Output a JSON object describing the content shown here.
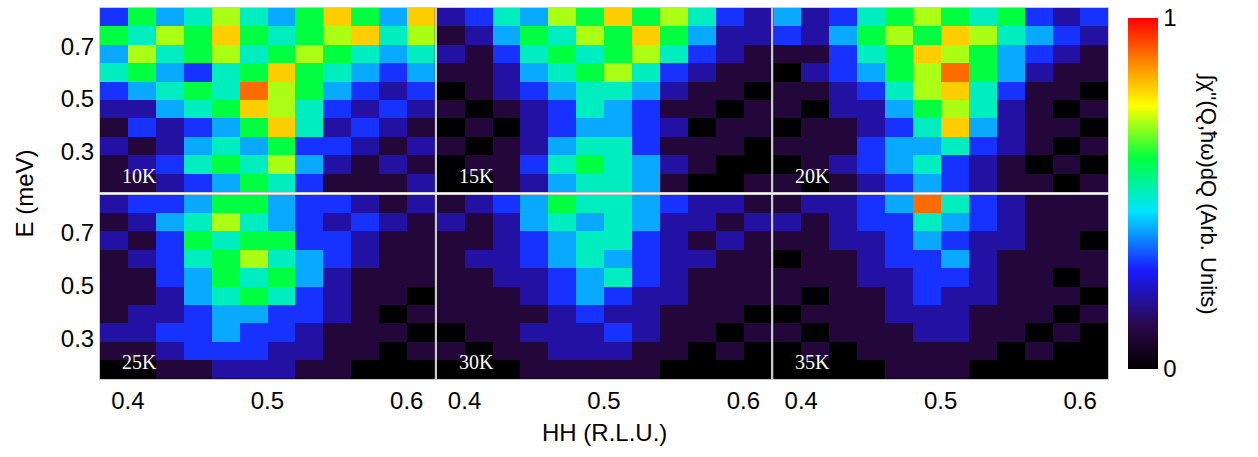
{
  "chart_data": {
    "type": "heatmap",
    "x_label": "HH (R.L.U.)",
    "y_label": "E (meV)",
    "colorbar_title": "∫χ''(Q,ħω)dQ (Arb. Units)",
    "colorbar_range": [
      0,
      1
    ],
    "colorbar_ticks": [
      0,
      1
    ],
    "xlim": [
      0.38,
      0.62
    ],
    "ylim": [
      0.145,
      0.845
    ],
    "xticks": [
      0.4,
      0.5,
      0.6
    ],
    "yticks": [
      0.3,
      0.5,
      0.7
    ],
    "x": [
      0.39,
      0.41,
      0.43,
      0.45,
      0.47,
      0.49,
      0.51,
      0.53,
      0.55,
      0.57,
      0.59,
      0.61
    ],
    "y": [
      0.18,
      0.25,
      0.32,
      0.39,
      0.46,
      0.53,
      0.6,
      0.67,
      0.74,
      0.81
    ],
    "panels": [
      {
        "title": "10K",
        "z": [
          [
            0.1,
            0.1,
            0.2,
            0.3,
            0.4,
            0.6,
            0.5,
            0.3,
            0.1,
            0.1,
            0.1,
            0.2
          ],
          [
            0.1,
            0.2,
            0.3,
            0.5,
            0.6,
            0.5,
            0.7,
            0.4,
            0.2,
            0.1,
            0.2,
            0.1
          ],
          [
            0.2,
            0.1,
            0.2,
            0.4,
            0.5,
            0.4,
            0.6,
            0.3,
            0.3,
            0.2,
            0.1,
            0.2
          ],
          [
            0.1,
            0.3,
            0.2,
            0.3,
            0.4,
            0.6,
            0.8,
            0.5,
            0.2,
            0.3,
            0.2,
            0.1
          ],
          [
            0.2,
            0.2,
            0.4,
            0.5,
            0.6,
            0.8,
            0.7,
            0.5,
            0.3,
            0.2,
            0.3,
            0.2
          ],
          [
            0.3,
            0.4,
            0.5,
            0.6,
            0.5,
            0.9,
            0.7,
            0.6,
            0.4,
            0.3,
            0.2,
            0.3
          ],
          [
            0.5,
            0.6,
            0.4,
            0.3,
            0.5,
            0.6,
            0.8,
            0.6,
            0.5,
            0.4,
            0.3,
            0.4
          ],
          [
            0.4,
            0.7,
            0.5,
            0.6,
            0.7,
            0.5,
            0.6,
            0.7,
            0.6,
            0.5,
            0.4,
            0.5
          ],
          [
            0.6,
            0.5,
            0.7,
            0.6,
            0.8,
            0.6,
            0.5,
            0.6,
            0.7,
            0.8,
            0.5,
            0.7
          ],
          [
            0.3,
            0.6,
            0.4,
            0.5,
            0.7,
            0.5,
            0.4,
            0.6,
            0.8,
            0.6,
            0.4,
            0.8
          ]
        ]
      },
      {
        "title": "15K",
        "z": [
          [
            0.0,
            0.0,
            0.1,
            0.2,
            0.4,
            0.5,
            0.5,
            0.4,
            0.1,
            0.0,
            0.0,
            0.1
          ],
          [
            0.0,
            0.1,
            0.1,
            0.3,
            0.5,
            0.6,
            0.5,
            0.4,
            0.2,
            0.1,
            0.0,
            0.0
          ],
          [
            0.1,
            0.0,
            0.1,
            0.2,
            0.4,
            0.5,
            0.5,
            0.3,
            0.1,
            0.1,
            0.1,
            0.0
          ],
          [
            0.0,
            0.1,
            0.0,
            0.2,
            0.3,
            0.4,
            0.4,
            0.3,
            0.2,
            0.0,
            0.1,
            0.1
          ],
          [
            0.1,
            0.0,
            0.1,
            0.2,
            0.3,
            0.5,
            0.4,
            0.3,
            0.1,
            0.1,
            0.0,
            0.1
          ],
          [
            0.0,
            0.1,
            0.2,
            0.3,
            0.4,
            0.5,
            0.5,
            0.4,
            0.2,
            0.1,
            0.1,
            0.0
          ],
          [
            0.1,
            0.1,
            0.2,
            0.4,
            0.5,
            0.6,
            0.7,
            0.5,
            0.3,
            0.2,
            0.1,
            0.1
          ],
          [
            0.2,
            0.1,
            0.3,
            0.5,
            0.6,
            0.5,
            0.6,
            0.7,
            0.5,
            0.3,
            0.2,
            0.1
          ],
          [
            0.1,
            0.2,
            0.4,
            0.6,
            0.5,
            0.7,
            0.6,
            0.8,
            0.6,
            0.4,
            0.2,
            0.2
          ],
          [
            0.2,
            0.3,
            0.5,
            0.4,
            0.7,
            0.6,
            0.8,
            0.6,
            0.7,
            0.5,
            0.3,
            0.2
          ]
        ]
      },
      {
        "title": "20K",
        "z": [
          [
            0.1,
            0.0,
            0.1,
            0.2,
            0.3,
            0.4,
            0.3,
            0.2,
            0.1,
            0.1,
            0.0,
            0.1
          ],
          [
            0.0,
            0.1,
            0.2,
            0.3,
            0.4,
            0.5,
            0.3,
            0.2,
            0.1,
            0.0,
            0.1,
            0.0
          ],
          [
            0.1,
            0.1,
            0.1,
            0.3,
            0.4,
            0.4,
            0.5,
            0.3,
            0.2,
            0.1,
            0.0,
            0.1
          ],
          [
            0.0,
            0.1,
            0.1,
            0.2,
            0.3,
            0.5,
            0.8,
            0.4,
            0.2,
            0.1,
            0.1,
            0.0
          ],
          [
            0.1,
            0.0,
            0.2,
            0.2,
            0.4,
            0.6,
            0.7,
            0.5,
            0.2,
            0.1,
            0.0,
            0.1
          ],
          [
            0.1,
            0.1,
            0.2,
            0.3,
            0.5,
            0.7,
            0.8,
            0.5,
            0.3,
            0.1,
            0.1,
            0.0
          ],
          [
            0.0,
            0.2,
            0.3,
            0.4,
            0.6,
            0.7,
            0.9,
            0.6,
            0.4,
            0.2,
            0.1,
            0.1
          ],
          [
            0.1,
            0.1,
            0.3,
            0.5,
            0.6,
            0.8,
            0.7,
            0.6,
            0.4,
            0.3,
            0.2,
            0.1
          ],
          [
            0.3,
            0.2,
            0.4,
            0.6,
            0.7,
            0.6,
            0.8,
            0.7,
            0.5,
            0.4,
            0.3,
            0.2
          ],
          [
            0.4,
            0.2,
            0.3,
            0.5,
            0.6,
            0.7,
            0.6,
            0.5,
            0.6,
            0.3,
            0.2,
            0.3
          ]
        ]
      },
      {
        "title": "25K",
        "z": [
          [
            0.0,
            0.0,
            0.1,
            0.1,
            0.2,
            0.2,
            0.2,
            0.1,
            0.1,
            0.0,
            0.0,
            0.0
          ],
          [
            0.1,
            0.1,
            0.2,
            0.3,
            0.3,
            0.3,
            0.2,
            0.2,
            0.1,
            0.1,
            0.0,
            0.1
          ],
          [
            0.2,
            0.2,
            0.3,
            0.3,
            0.4,
            0.3,
            0.3,
            0.2,
            0.1,
            0.1,
            0.1,
            0.0
          ],
          [
            0.1,
            0.2,
            0.2,
            0.3,
            0.4,
            0.4,
            0.3,
            0.3,
            0.2,
            0.1,
            0.0,
            0.1
          ],
          [
            0.1,
            0.1,
            0.2,
            0.4,
            0.5,
            0.6,
            0.5,
            0.3,
            0.2,
            0.1,
            0.1,
            0.0
          ],
          [
            0.1,
            0.1,
            0.3,
            0.4,
            0.6,
            0.5,
            0.6,
            0.4,
            0.2,
            0.1,
            0.1,
            0.1
          ],
          [
            0.1,
            0.2,
            0.3,
            0.5,
            0.6,
            0.7,
            0.5,
            0.4,
            0.3,
            0.2,
            0.1,
            0.1
          ],
          [
            0.2,
            0.1,
            0.3,
            0.6,
            0.5,
            0.6,
            0.6,
            0.3,
            0.3,
            0.2,
            0.1,
            0.1
          ],
          [
            0.1,
            0.2,
            0.4,
            0.5,
            0.7,
            0.5,
            0.4,
            0.3,
            0.2,
            0.3,
            0.2,
            0.1
          ],
          [
            0.2,
            0.3,
            0.3,
            0.4,
            0.6,
            0.6,
            0.4,
            0.3,
            0.3,
            0.2,
            0.1,
            0.2
          ]
        ]
      },
      {
        "title": "30K",
        "z": [
          [
            0.0,
            0.0,
            0.0,
            0.1,
            0.1,
            0.1,
            0.1,
            0.1,
            0.0,
            0.0,
            0.0,
            0.0
          ],
          [
            0.1,
            0.0,
            0.1,
            0.1,
            0.2,
            0.2,
            0.2,
            0.1,
            0.1,
            0.0,
            0.1,
            0.0
          ],
          [
            0.0,
            0.1,
            0.1,
            0.2,
            0.2,
            0.2,
            0.3,
            0.2,
            0.1,
            0.1,
            0.0,
            0.1
          ],
          [
            0.1,
            0.1,
            0.1,
            0.1,
            0.2,
            0.3,
            0.2,
            0.2,
            0.1,
            0.1,
            0.1,
            0.0
          ],
          [
            0.1,
            0.1,
            0.1,
            0.2,
            0.3,
            0.4,
            0.3,
            0.2,
            0.2,
            0.1,
            0.1,
            0.1
          ],
          [
            0.1,
            0.1,
            0.2,
            0.2,
            0.3,
            0.4,
            0.5,
            0.3,
            0.2,
            0.1,
            0.1,
            0.1
          ],
          [
            0.1,
            0.2,
            0.2,
            0.3,
            0.4,
            0.5,
            0.4,
            0.3,
            0.2,
            0.2,
            0.1,
            0.1
          ],
          [
            0.1,
            0.1,
            0.2,
            0.3,
            0.4,
            0.5,
            0.5,
            0.3,
            0.2,
            0.1,
            0.2,
            0.1
          ],
          [
            0.2,
            0.1,
            0.2,
            0.4,
            0.5,
            0.4,
            0.5,
            0.4,
            0.2,
            0.2,
            0.1,
            0.2
          ],
          [
            0.1,
            0.2,
            0.3,
            0.4,
            0.6,
            0.5,
            0.5,
            0.4,
            0.3,
            0.2,
            0.2,
            0.1
          ]
        ]
      },
      {
        "title": "35K",
        "z": [
          [
            0.0,
            0.0,
            0.0,
            0.0,
            0.1,
            0.1,
            0.1,
            0.0,
            0.0,
            0.0,
            0.0,
            0.0
          ],
          [
            0.0,
            0.1,
            0.0,
            0.1,
            0.1,
            0.1,
            0.1,
            0.1,
            0.0,
            0.1,
            0.0,
            0.0
          ],
          [
            0.1,
            0.0,
            0.1,
            0.1,
            0.1,
            0.2,
            0.2,
            0.1,
            0.1,
            0.0,
            0.1,
            0.0
          ],
          [
            0.0,
            0.1,
            0.1,
            0.1,
            0.2,
            0.2,
            0.2,
            0.1,
            0.1,
            0.1,
            0.0,
            0.1
          ],
          [
            0.1,
            0.0,
            0.1,
            0.1,
            0.2,
            0.3,
            0.2,
            0.2,
            0.1,
            0.1,
            0.1,
            0.0
          ],
          [
            0.1,
            0.1,
            0.1,
            0.2,
            0.2,
            0.3,
            0.3,
            0.2,
            0.1,
            0.1,
            0.0,
            0.1
          ],
          [
            0.0,
            0.1,
            0.1,
            0.2,
            0.3,
            0.3,
            0.4,
            0.2,
            0.1,
            0.1,
            0.1,
            0.1
          ],
          [
            0.1,
            0.1,
            0.2,
            0.2,
            0.3,
            0.4,
            0.3,
            0.2,
            0.2,
            0.1,
            0.1,
            0.0
          ],
          [
            0.2,
            0.1,
            0.2,
            0.3,
            0.3,
            0.5,
            0.4,
            0.3,
            0.2,
            0.1,
            0.1,
            0.1
          ],
          [
            0.1,
            0.2,
            0.2,
            0.3,
            0.4,
            0.9,
            0.5,
            0.3,
            0.2,
            0.1,
            0.1,
            0.1
          ]
        ]
      }
    ]
  }
}
